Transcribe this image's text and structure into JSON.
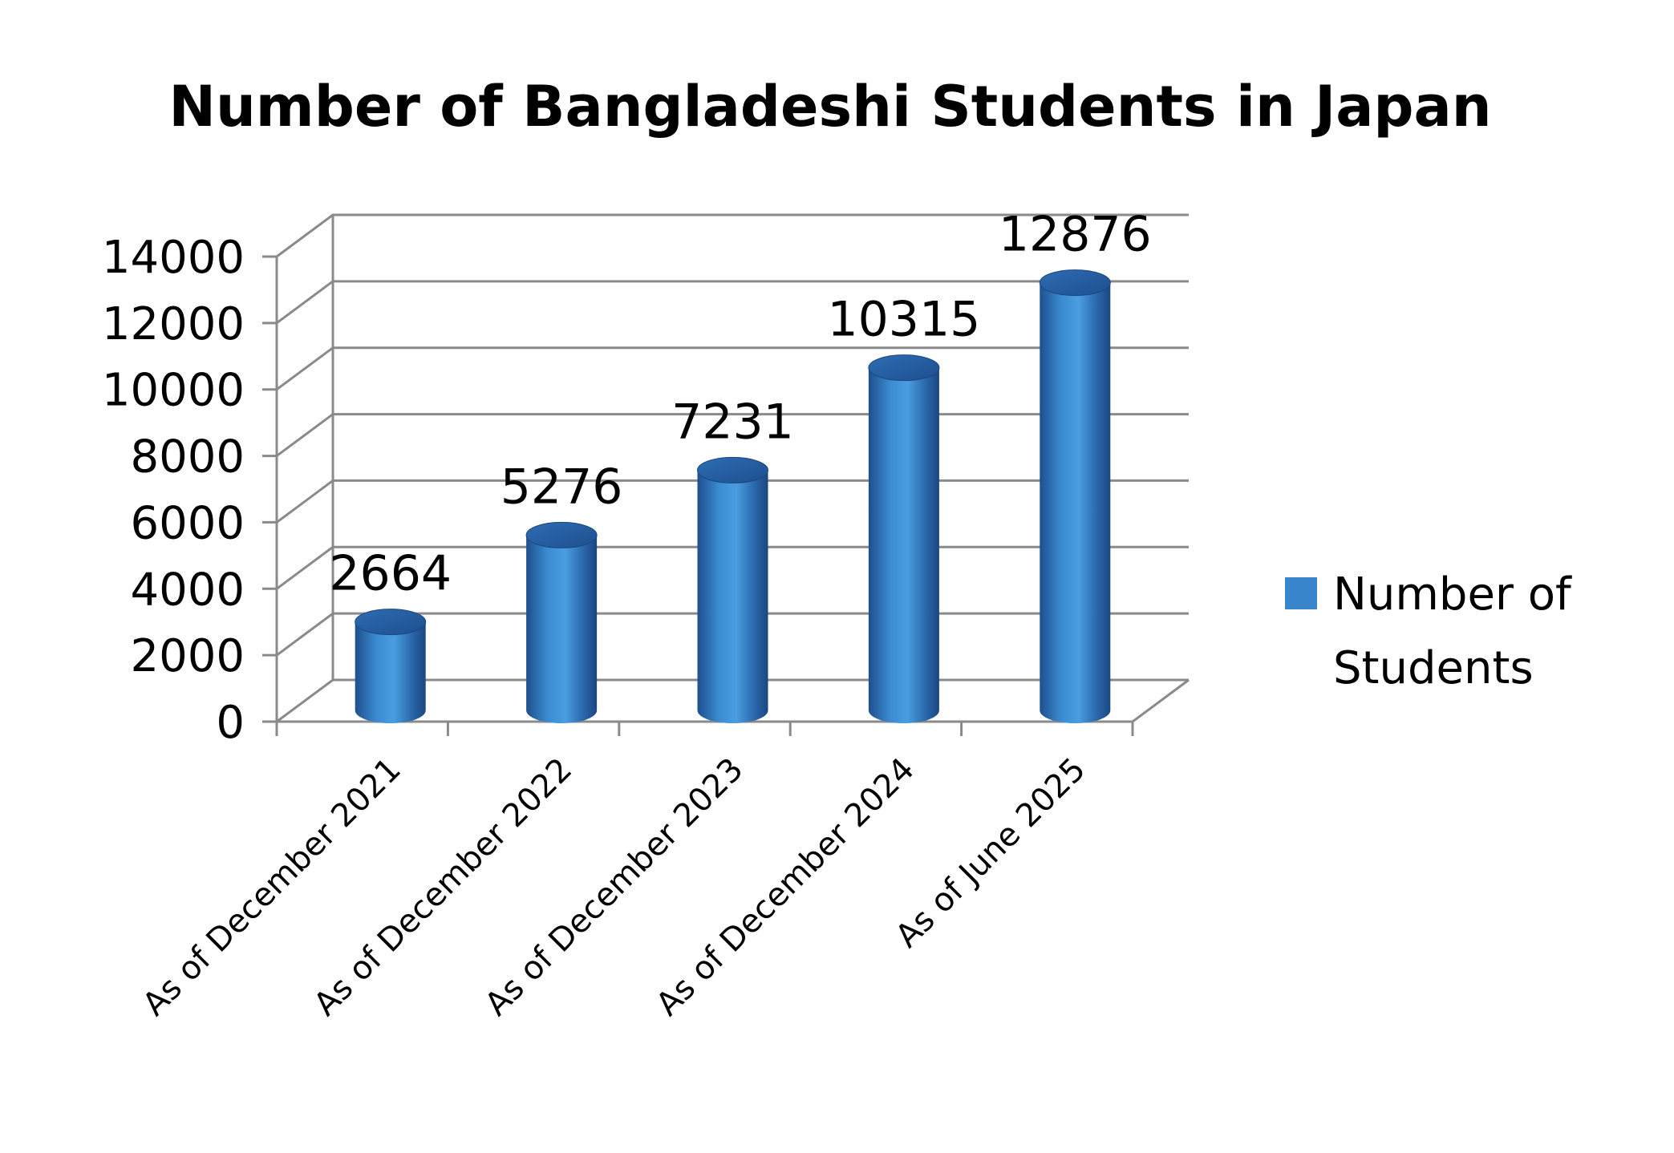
{
  "chart_data": {
    "type": "bar",
    "title": "Number of Bangladeshi Students in Japan",
    "categories": [
      "As of December 2021",
      "As of December 2022",
      "As of December 2023",
      "As of December 2024",
      "As of June 2025"
    ],
    "series": [
      {
        "name": "Number of Students",
        "values": [
          2664,
          5276,
          7231,
          10315,
          12876
        ]
      }
    ],
    "ylim": [
      0,
      14000
    ],
    "yticks": [
      0,
      2000,
      4000,
      6000,
      8000,
      10000,
      12000,
      14000
    ],
    "xlabel": "",
    "ylabel": "",
    "grid": true,
    "legend_position": "right",
    "style_3d": "cylinder",
    "colors": {
      "bar": "#2e75b6",
      "grid": "#8a8a8a"
    }
  },
  "legend": {
    "line1": "Number of",
    "line2": "Students"
  }
}
